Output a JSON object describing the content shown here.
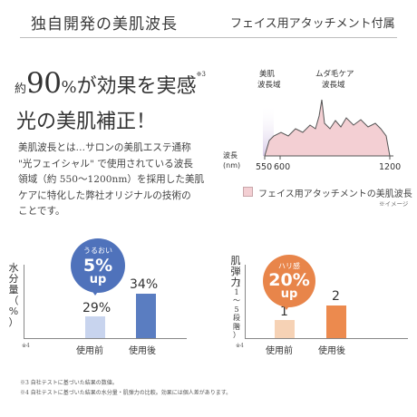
{
  "header": {
    "left_title": "独自開発の美肌波長",
    "right_title": "フェイス用アタッチメント付属"
  },
  "headline": {
    "prefix": "約",
    "percent": "90",
    "percent_sign": "%",
    "rest": "が効果を実感",
    "note": "※3",
    "line2": "光の美肌補正！"
  },
  "body_text": [
    "美肌波長とは…サロンの美肌エステ通称",
    "\"光フェイシャル\" で使用されている波長",
    "領域（約 550〜1200nm）を採用した美肌",
    "ケアに特化した弊社オリジナルの技術の",
    "ことです。"
  ],
  "spectrum": {
    "label_skin": [
      "美肌",
      "波長域"
    ],
    "label_hair": [
      "ムダ毛ケア",
      "波長域"
    ],
    "axis_label": [
      "波長",
      "(nm)"
    ],
    "ticks": [
      "550",
      "600",
      "1200"
    ],
    "legend": "フェイス用アタッチメントの美肌波長",
    "legend_note": "※イメージ",
    "colors": {
      "fill": "#f3cfd3",
      "band": "#d8cbe8",
      "line": "#555555"
    }
  },
  "moisture_chart": {
    "ylabel": [
      "水",
      "分",
      "量",
      "（",
      "%",
      "）"
    ],
    "note": "※4",
    "bubble": {
      "label": "うるおい",
      "value": "5%",
      "up": "up"
    },
    "categories": [
      "使用前",
      "使用後"
    ],
    "values": [
      29,
      34
    ],
    "value_labels": [
      "29%",
      "34%"
    ],
    "colors": [
      "#c8d4ee",
      "#5a7dc1"
    ]
  },
  "elasticity_chart": {
    "ylabel": [
      "肌",
      "弾",
      "力"
    ],
    "ysub": [
      "（",
      "1",
      "〜",
      "5",
      "段",
      "階",
      "）"
    ],
    "note": "※4",
    "bubble": {
      "label": "ハリ感",
      "value": "20%",
      "up": "up"
    },
    "categories": [
      "使用前",
      "使用後"
    ],
    "values": [
      1,
      2
    ],
    "value_labels": [
      "1",
      "2"
    ],
    "colors": [
      "#f6d2b5",
      "#ec8a4e"
    ]
  },
  "footnotes": [
    "※3 自社テストに基づいた結果の数値。",
    "※4 自社テストに基づいた結果の水分量・肌弾力の比較。効果には個人差があります。"
  ]
}
